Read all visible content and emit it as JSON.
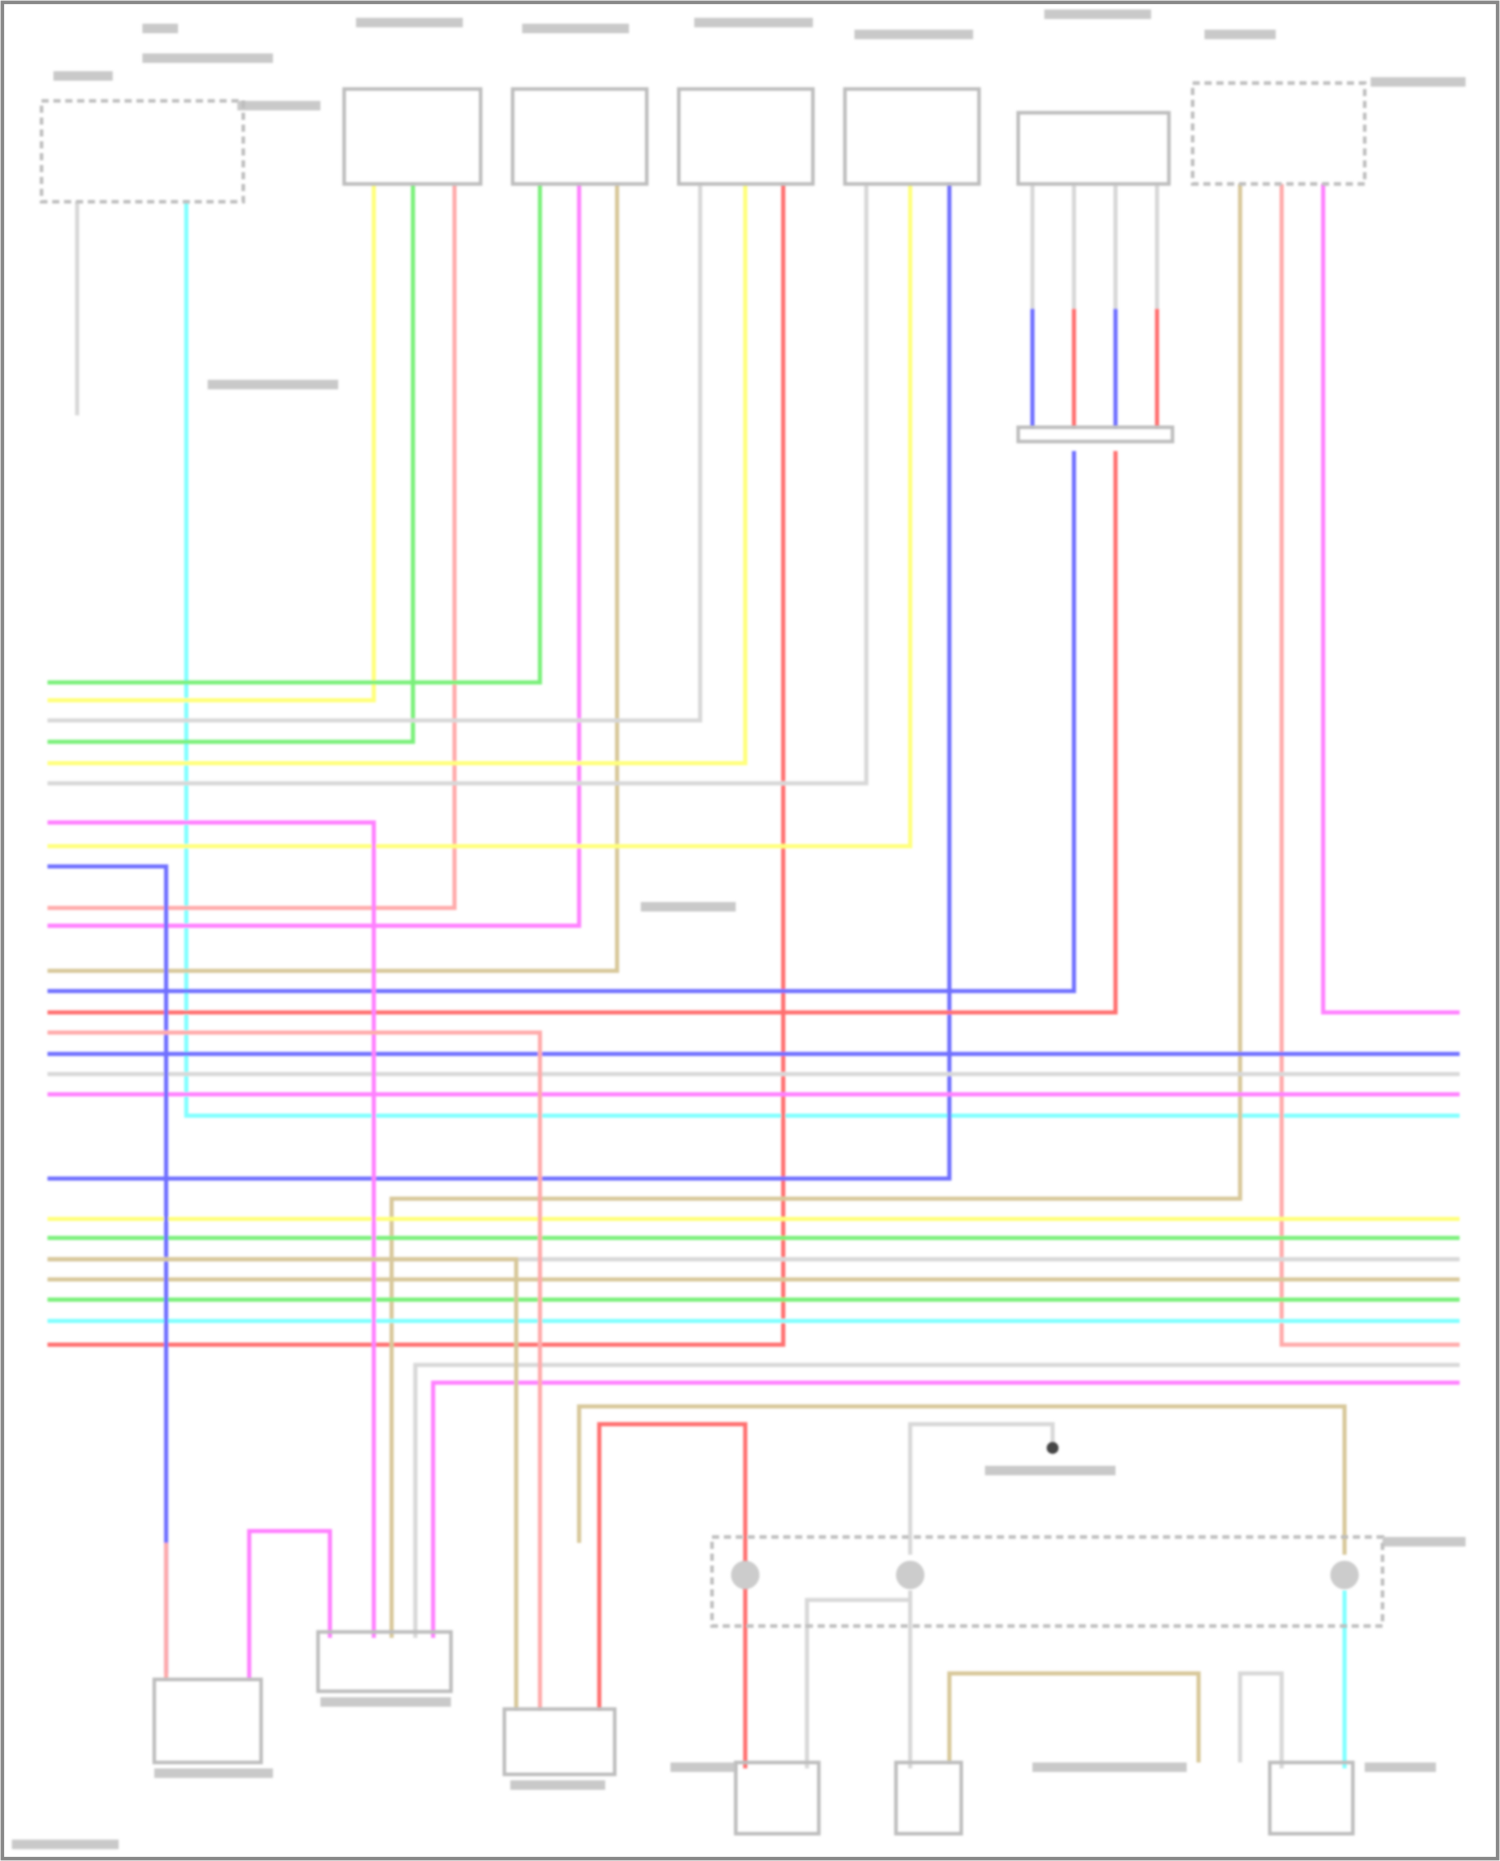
{
  "diagram": {
    "wire_colors": {
      "yellow": "#ffff7a",
      "green": "#7af07a",
      "pink": "#ffaaaa",
      "magenta": "#ff80ff",
      "red": "#ff6f6f",
      "blue": "#6f6fff",
      "cyan": "#80ffff",
      "gray": "#d8d8d8",
      "tan": "#d8c89a",
      "outline": "#bdbdbd",
      "border": "#888888"
    }
  }
}
